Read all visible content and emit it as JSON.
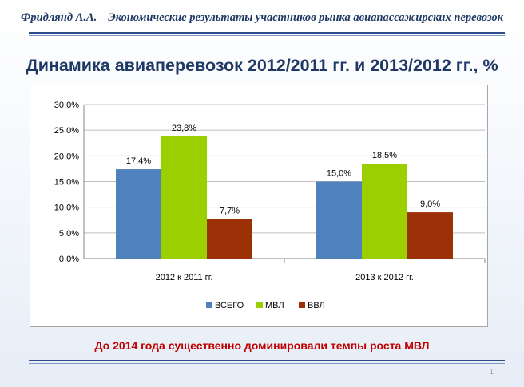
{
  "header": {
    "author": "Фридлянд А.А.",
    "subject": "Экономические результаты участников рынка авиапассажирских перевозок"
  },
  "slide": {
    "title": "Динамика авиаперевозок 2012/2011 гг. и 2013/2012 гг., %",
    "conclusion": "До 2014 года существенно доминировали темпы роста МВЛ",
    "page_number": "1"
  },
  "chart_data": {
    "type": "bar",
    "title": "",
    "xlabel": "",
    "ylabel": "",
    "categories": [
      "2012 к 2011 гг.",
      "2013 к 2012 гг."
    ],
    "series": [
      {
        "name": "ВСЕГО",
        "color": "#4f81bd",
        "values": [
          17.4,
          15.0
        ],
        "labels": [
          "17,4%",
          "15,0%"
        ]
      },
      {
        "name": "МВЛ",
        "color": "#9bcf00",
        "values": [
          23.8,
          18.5
        ],
        "labels": [
          "23,8%",
          "18,5%"
        ]
      },
      {
        "name": "ВВЛ",
        "color": "#9c3006",
        "values": [
          7.7,
          9.0
        ],
        "labels": [
          "7,7%",
          "9,0%"
        ]
      }
    ],
    "ylim": [
      0,
      30
    ],
    "yticks": [
      0,
      5,
      10,
      15,
      20,
      25,
      30
    ],
    "ytick_labels": [
      "0,0%",
      "5,0%",
      "10,0%",
      "15,0%",
      "20,0%",
      "25,0%",
      "30,0%"
    ],
    "grid": true,
    "legend_position": "bottom"
  }
}
